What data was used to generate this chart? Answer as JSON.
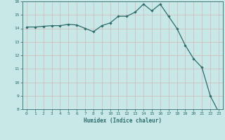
{
  "x": [
    0,
    1,
    2,
    3,
    4,
    5,
    6,
    7,
    8,
    9,
    10,
    11,
    12,
    13,
    14,
    15,
    16,
    17,
    18,
    19,
    20,
    21,
    22,
    23
  ],
  "y": [
    14.1,
    14.1,
    14.15,
    14.2,
    14.2,
    14.3,
    14.25,
    14.0,
    13.75,
    14.2,
    14.4,
    14.9,
    14.9,
    15.2,
    15.8,
    15.3,
    15.8,
    14.9,
    14.0,
    12.75,
    11.75,
    11.1,
    9.0,
    7.8
  ],
  "line_color": "#2d6b6b",
  "marker": "D",
  "marker_size": 1.8,
  "bg_color": "#c8e8e8",
  "grid_color": "#b0d0d0",
  "xlabel": "Humidex (Indice chaleur)",
  "xlabel_color": "#2d6b6b",
  "tick_color": "#2d6b6b",
  "ylim": [
    8,
    16
  ],
  "xlim": [
    -0.5,
    23.5
  ],
  "yticks": [
    8,
    9,
    10,
    11,
    12,
    13,
    14,
    15,
    16
  ],
  "xticks": [
    0,
    1,
    2,
    3,
    4,
    5,
    6,
    7,
    8,
    9,
    10,
    11,
    12,
    13,
    14,
    15,
    16,
    17,
    18,
    19,
    20,
    21,
    22,
    23
  ]
}
